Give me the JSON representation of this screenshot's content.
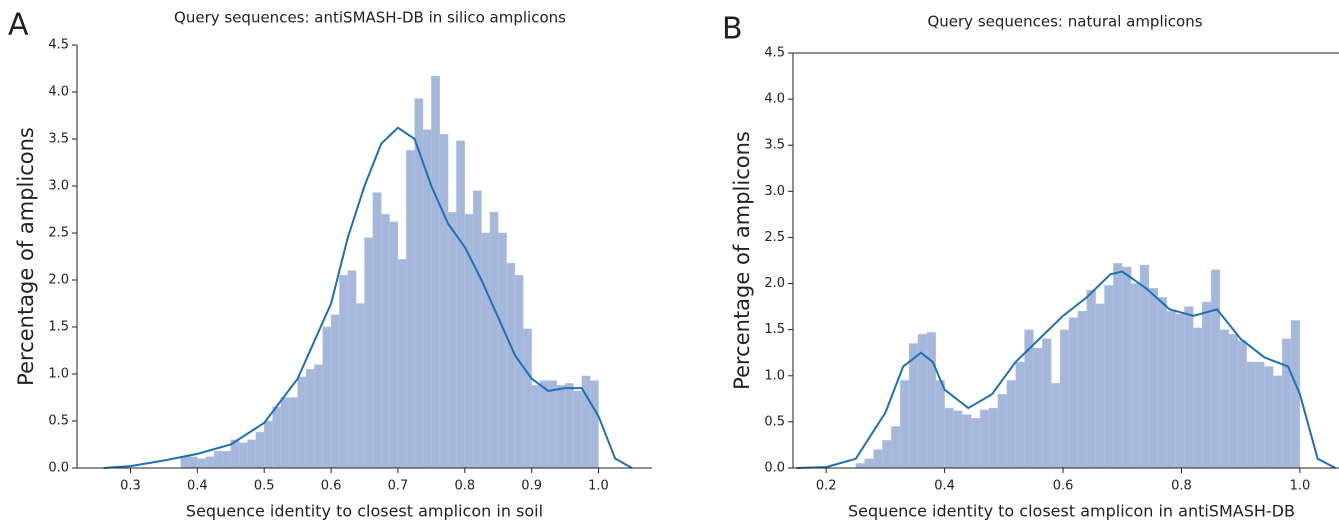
{
  "chart_data": [
    {
      "type": "histogram",
      "panel": "A",
      "title": "Query sequences: antiSMASH-DB in silico amplicons",
      "xlabel": "Sequence identity to closest amplicon in soil",
      "ylabel": "Percentage of amplicons",
      "color": "#a5b8dc",
      "line_color": "#1f6fb4",
      "spines": [
        "left",
        "bottom"
      ],
      "bins": [
        0.375,
        0.3875,
        0.4,
        0.4125,
        0.425,
        0.4375,
        0.45,
        0.4625,
        0.475,
        0.4875,
        0.5,
        0.5125,
        0.525,
        0.5375,
        0.55,
        0.5625,
        0.575,
        0.5875,
        0.6,
        0.6125,
        0.625,
        0.6375,
        0.65,
        0.6625,
        0.675,
        0.6875,
        0.7,
        0.7125,
        0.725,
        0.7375,
        0.75,
        0.7625,
        0.775,
        0.7875,
        0.8,
        0.8125,
        0.825,
        0.8375,
        0.85,
        0.8625,
        0.875,
        0.8875,
        0.9,
        0.9125,
        0.925,
        0.9375,
        0.95,
        0.9625,
        0.975,
        0.9875,
        1.0
      ],
      "values": [
        0.12,
        0.12,
        0.1,
        0.12,
        0.18,
        0.18,
        0.3,
        0.27,
        0.3,
        0.38,
        0.5,
        0.65,
        0.75,
        0.75,
        0.97,
        1.05,
        1.1,
        1.5,
        1.63,
        2.05,
        2.1,
        1.75,
        2.45,
        2.93,
        2.7,
        2.62,
        2.22,
        3.38,
        3.93,
        3.6,
        4.17,
        3.55,
        2.72,
        3.48,
        2.7,
        2.95,
        2.5,
        2.72,
        2.5,
        2.18,
        2.05,
        1.48,
        0.88,
        0.93,
        0.93,
        0.88,
        0.9,
        0.82,
        0.98,
        0.93
      ],
      "kde": {
        "x": [
          0.26,
          0.3,
          0.35,
          0.4,
          0.45,
          0.5,
          0.55,
          0.6,
          0.625,
          0.65,
          0.675,
          0.7,
          0.725,
          0.75,
          0.775,
          0.8,
          0.825,
          0.85,
          0.875,
          0.9,
          0.925,
          0.95,
          0.975,
          1.0,
          1.025,
          1.05
        ],
        "values": [
          0,
          0.02,
          0.08,
          0.15,
          0.25,
          0.48,
          0.95,
          1.75,
          2.45,
          3.0,
          3.45,
          3.62,
          3.5,
          3.0,
          2.6,
          2.35,
          2.0,
          1.6,
          1.2,
          0.95,
          0.82,
          0.85,
          0.85,
          0.55,
          0.1,
          0
        ]
      },
      "xlim": [
        0.22,
        1.08
      ],
      "ylim": [
        0,
        4.5
      ],
      "xticks": [
        0.3,
        0.4,
        0.5,
        0.6,
        0.7,
        0.8,
        0.9,
        {
          "value": 1.0,
          "label": "1.0"
        }
      ],
      "yticks": [
        {
          "value": 0,
          "label": "0.0"
        },
        0.5,
        {
          "value": 1,
          "label": "1.0"
        },
        1.5,
        {
          "value": 2,
          "label": "2.0"
        },
        2.5,
        {
          "value": 3,
          "label": "3.0"
        },
        3.5,
        {
          "value": 4,
          "label": "4.0"
        },
        4.5
      ]
    },
    {
      "type": "histogram",
      "panel": "B",
      "title": "Query sequences: natural amplicons",
      "xlabel": "Sequence identity to closest amplicon in antiSMASH-DB",
      "ylabel": "Percentage of amplicons",
      "color": "#a5b8dc",
      "line_color": "#1f6fb4",
      "spines": [
        "left",
        "bottom",
        "top"
      ],
      "bins": [
        0.25,
        0.265,
        0.28,
        0.295,
        0.31,
        0.325,
        0.34,
        0.355,
        0.37,
        0.385,
        0.4,
        0.415,
        0.43,
        0.445,
        0.46,
        0.475,
        0.49,
        0.505,
        0.52,
        0.535,
        0.55,
        0.565,
        0.58,
        0.595,
        0.61,
        0.625,
        0.64,
        0.655,
        0.67,
        0.685,
        0.7,
        0.715,
        0.73,
        0.745,
        0.76,
        0.775,
        0.79,
        0.805,
        0.82,
        0.835,
        0.85,
        0.865,
        0.88,
        0.895,
        0.91,
        0.925,
        0.94,
        0.955,
        0.97,
        0.985,
        1.0
      ],
      "values": [
        0.05,
        0.1,
        0.2,
        0.3,
        0.45,
        0.95,
        1.35,
        1.45,
        1.47,
        0.95,
        0.65,
        0.62,
        0.58,
        0.54,
        0.63,
        0.65,
        0.8,
        0.95,
        1.15,
        1.5,
        1.3,
        1.4,
        0.92,
        1.5,
        1.63,
        1.7,
        1.93,
        1.78,
        1.98,
        2.22,
        2.18,
        2.0,
        2.2,
        1.95,
        1.85,
        1.7,
        1.67,
        1.75,
        1.52,
        1.8,
        2.15,
        1.5,
        1.45,
        1.38,
        1.15,
        1.15,
        1.1,
        1.0,
        1.4,
        1.6
      ],
      "kde": {
        "x": [
          0.15,
          0.2,
          0.25,
          0.3,
          0.33,
          0.36,
          0.38,
          0.4,
          0.44,
          0.48,
          0.52,
          0.56,
          0.6,
          0.64,
          0.68,
          0.7,
          0.74,
          0.78,
          0.82,
          0.86,
          0.9,
          0.94,
          0.98,
          1.0,
          1.03,
          1.06
        ],
        "values": [
          0,
          0.01,
          0.1,
          0.6,
          1.1,
          1.25,
          1.15,
          0.85,
          0.65,
          0.8,
          1.15,
          1.4,
          1.65,
          1.85,
          2.1,
          2.13,
          1.95,
          1.72,
          1.65,
          1.72,
          1.4,
          1.2,
          1.1,
          0.8,
          0.1,
          0
        ]
      },
      "xlim": [
        0.144,
        1.066
      ],
      "ylim": [
        0,
        4.5
      ],
      "xticks": [
        0.2,
        0.4,
        0.6,
        0.8,
        {
          "value": 1.0,
          "label": "1.0"
        }
      ],
      "yticks": [
        {
          "value": 0,
          "label": "0.0"
        },
        0.5,
        {
          "value": 1,
          "label": "1.0"
        },
        1.5,
        {
          "value": 2,
          "label": "2.0"
        },
        2.5,
        {
          "value": 3,
          "label": "3.0"
        },
        3.5,
        {
          "value": 4,
          "label": "4.0"
        },
        4.5
      ]
    }
  ]
}
